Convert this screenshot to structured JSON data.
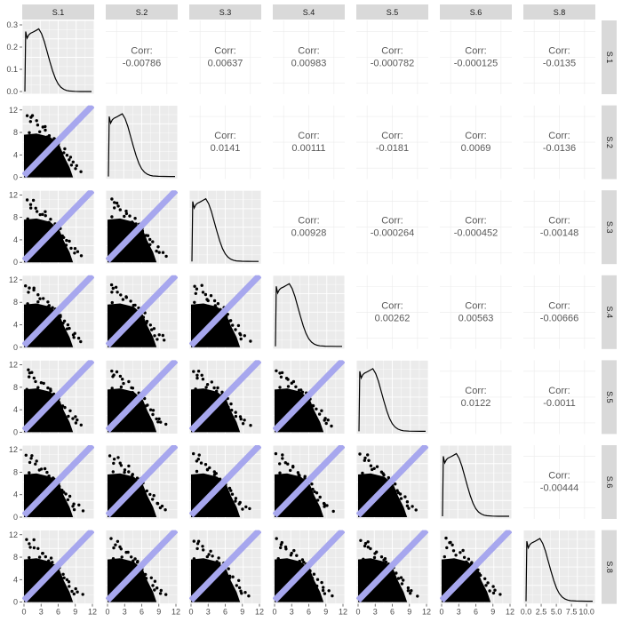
{
  "chart_data": {
    "type": "scatter",
    "title": "",
    "layout": "scatterplot-matrix",
    "variables": [
      "S.1",
      "S.2",
      "S.3",
      "S.4",
      "S.5",
      "S.6",
      "S.8"
    ],
    "corr_label": "Corr:",
    "correlations": [
      [
        "",
        "-0.00786",
        "0.00637",
        "0.00983",
        "-0.000782",
        "-0.000125",
        "-0.0135"
      ],
      [
        "",
        "",
        "0.0141",
        "0.00111",
        "-0.0181",
        "0.0069",
        "-0.0136"
      ],
      [
        "",
        "",
        "",
        "0.00928",
        "-0.000264",
        "-0.000452",
        "-0.00148"
      ],
      [
        "",
        "",
        "",
        "",
        "0.00262",
        "0.00563",
        "-0.00666"
      ],
      [
        "",
        "",
        "",
        "",
        "",
        "0.0122",
        "-0.0011"
      ],
      [
        "",
        "",
        "",
        "",
        "",
        "",
        "-0.00444"
      ],
      [
        "",
        "",
        "",
        "",
        "",
        "",
        ""
      ]
    ],
    "scatter_axis": {
      "xlim": [
        0,
        12
      ],
      "ylim": [
        0,
        12.5
      ],
      "x_ticks": [
        0,
        3,
        6,
        9,
        12
      ],
      "y_ticks": [
        0,
        4,
        8,
        12
      ]
    },
    "density_panel_1": {
      "ylim": [
        0,
        0.3
      ],
      "y_ticks": [
        "0.0",
        "0.1",
        "0.2",
        "0.3"
      ]
    },
    "last_density_x_ticks": [
      "0.0",
      "2.5",
      "5.0",
      "7.5",
      "10.0"
    ],
    "last_density_xlim": [
      0,
      11
    ],
    "density_curve": {
      "x": [
        0,
        0.15,
        0.4,
        0.7,
        1.0,
        1.5,
        2.0,
        2.5,
        3.0,
        3.5,
        4.0,
        4.5,
        5.0,
        5.5,
        6.0,
        6.5,
        7.0,
        7.5,
        8.0,
        9.0,
        10.0,
        11.0,
        12.0
      ],
      "y": [
        0.0,
        0.27,
        0.24,
        0.255,
        0.262,
        0.268,
        0.275,
        0.282,
        0.26,
        0.225,
        0.18,
        0.135,
        0.092,
        0.058,
        0.034,
        0.019,
        0.01,
        0.005,
        0.0025,
        0.0008,
        0.0002,
        0.0,
        0.0
      ]
    },
    "points": {
      "x": [
        0.5,
        1.2,
        2.3,
        3.1,
        4.0,
        4.6,
        5.2,
        5.8,
        6.3,
        6.9,
        7.4,
        8.1,
        8.8,
        9.5,
        10.2,
        1.0,
        2.0,
        3.5,
        4.4,
        5.5,
        6.1,
        6.8,
        7.7,
        8.5,
        9.0,
        1.6,
        2.7,
        0.8,
        3.9,
        5.0
      ],
      "y": [
        11.1,
        10.4,
        9.3,
        8.7,
        8.1,
        7.6,
        7.0,
        6.4,
        5.9,
        4.9,
        4.2,
        3.6,
        2.5,
        1.9,
        1.3,
        9.8,
        9.9,
        8.9,
        7.3,
        6.8,
        5.3,
        4.5,
        3.1,
        2.2,
        1.6,
        10.8,
        8.2,
        7.9,
        6.1,
        5.7
      ]
    },
    "colors": {
      "panel_background": "#ebebeb",
      "grid": "#ffffff",
      "strip_background": "#d9d9d9",
      "points": "#000000",
      "diagonal_band": "#a7a7ee",
      "density_line": "#000000"
    }
  }
}
